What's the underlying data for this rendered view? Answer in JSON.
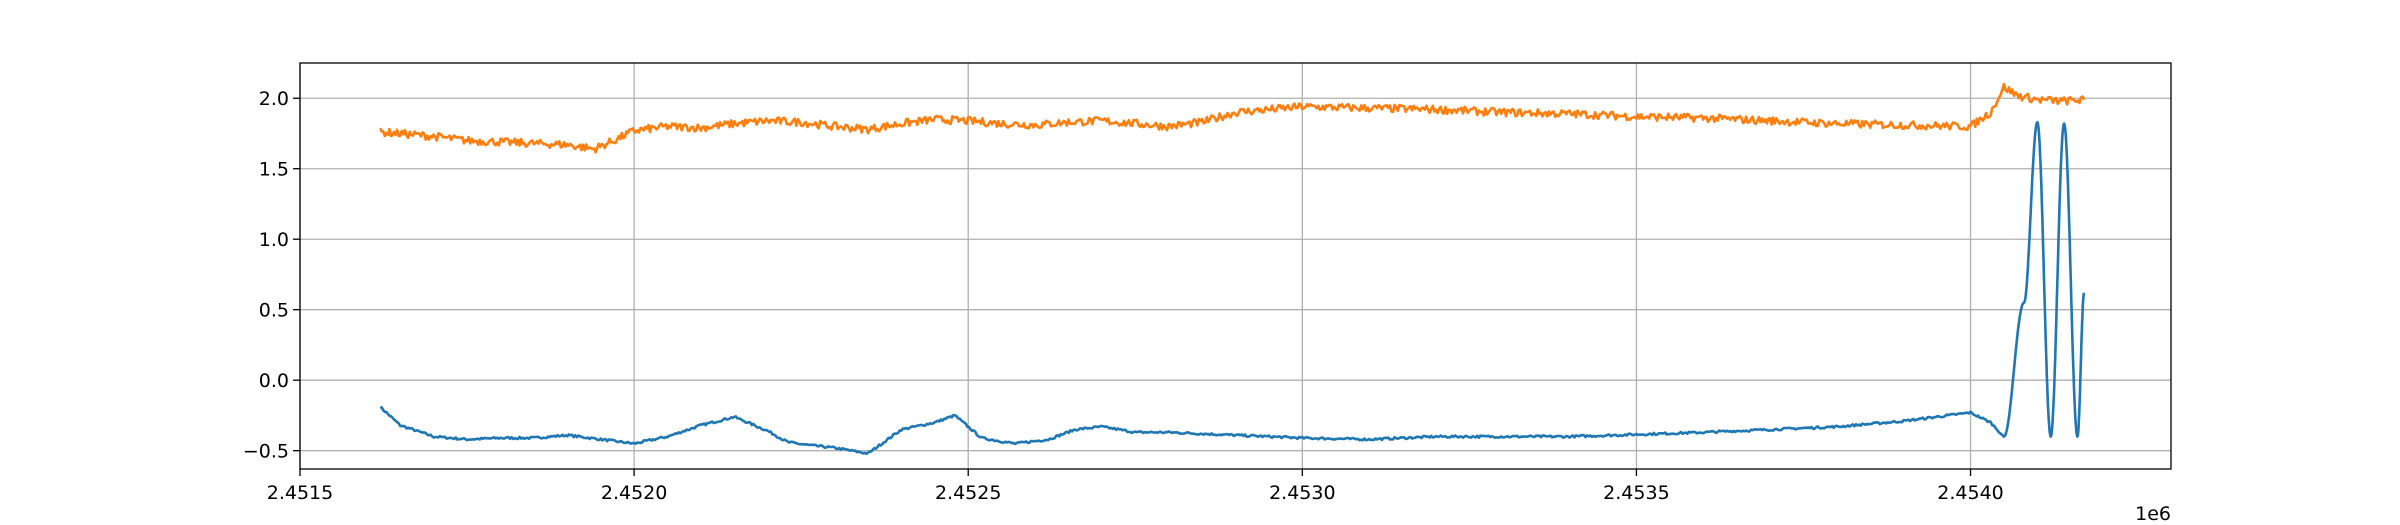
{
  "chart_data": {
    "type": "line",
    "title": "",
    "xlabel": "",
    "ylabel": "",
    "x_offset_label": "1e6",
    "xlim": [
      2.4515,
      2.4543
    ],
    "ylim": [
      -0.63,
      2.25
    ],
    "grid": true,
    "legend": "none",
    "x_ticks": [
      2.4515,
      2.452,
      2.4525,
      2.453,
      2.4535,
      2.454
    ],
    "x_tick_labels": [
      "2.4515",
      "2.4520",
      "2.4525",
      "2.4530",
      "2.4535",
      "2.4540"
    ],
    "y_ticks": [
      -0.5,
      0.0,
      0.5,
      1.0,
      1.5,
      2.0
    ],
    "y_tick_labels": [
      "−0.5",
      "0.0",
      "0.5",
      "1.0",
      "1.5",
      "2.0"
    ],
    "series": [
      {
        "color": "#1f77b4",
        "x": [
          2.45162,
          2.45165,
          2.4517,
          2.45175,
          2.4518,
          2.45185,
          2.4519,
          2.45195,
          2.452,
          2.45205,
          2.4521,
          2.45215,
          2.4522,
          2.45223,
          2.45226,
          2.4523,
          2.45235,
          2.4524,
          2.45245,
          2.45248,
          2.45252,
          2.45257,
          2.45262,
          2.45266,
          2.4527,
          2.45275,
          2.4528,
          2.4529,
          2.453,
          2.4531,
          2.4532,
          2.4534,
          2.4536,
          2.4538,
          2.4539,
          2.454,
          2.45403,
          2.45405,
          2.45408,
          2.4541,
          2.45412,
          2.45414,
          2.45416,
          2.45417
        ],
        "y": [
          -0.19,
          -0.32,
          -0.4,
          -0.42,
          -0.41,
          -0.41,
          -0.39,
          -0.42,
          -0.45,
          -0.4,
          -0.32,
          -0.26,
          -0.36,
          -0.44,
          -0.46,
          -0.48,
          -0.52,
          -0.35,
          -0.3,
          -0.25,
          -0.41,
          -0.45,
          -0.42,
          -0.35,
          -0.33,
          -0.37,
          -0.37,
          -0.39,
          -0.41,
          -0.42,
          -0.4,
          -0.4,
          -0.37,
          -0.33,
          -0.29,
          -0.23,
          -0.3,
          -0.4,
          0.55,
          1.83,
          -0.4,
          1.82,
          -0.4,
          0.62
        ]
      },
      {
        "color": "#ff7f0e",
        "x": [
          2.45162,
          2.45165,
          2.4517,
          2.45175,
          2.4518,
          2.45185,
          2.4519,
          2.45194,
          2.45197,
          2.452,
          2.45205,
          2.4521,
          2.45215,
          2.4522,
          2.45225,
          2.4523,
          2.45235,
          2.4524,
          2.45245,
          2.4525,
          2.45255,
          2.4526,
          2.45265,
          2.4527,
          2.45275,
          2.4528,
          2.45285,
          2.4529,
          2.453,
          2.4531,
          2.4532,
          2.4533,
          2.4534,
          2.4535,
          2.4536,
          2.4537,
          2.4538,
          2.4539,
          2.454,
          2.45403,
          2.45405,
          2.45407,
          2.4541,
          2.45414,
          2.45417
        ],
        "y": [
          1.76,
          1.75,
          1.73,
          1.7,
          1.69,
          1.68,
          1.67,
          1.64,
          1.7,
          1.77,
          1.8,
          1.79,
          1.82,
          1.84,
          1.83,
          1.8,
          1.78,
          1.82,
          1.85,
          1.84,
          1.82,
          1.81,
          1.83,
          1.84,
          1.82,
          1.8,
          1.83,
          1.9,
          1.94,
          1.93,
          1.92,
          1.9,
          1.89,
          1.87,
          1.86,
          1.84,
          1.82,
          1.81,
          1.8,
          1.9,
          2.08,
          2.02,
          1.99,
          1.98,
          1.99
        ]
      }
    ]
  }
}
